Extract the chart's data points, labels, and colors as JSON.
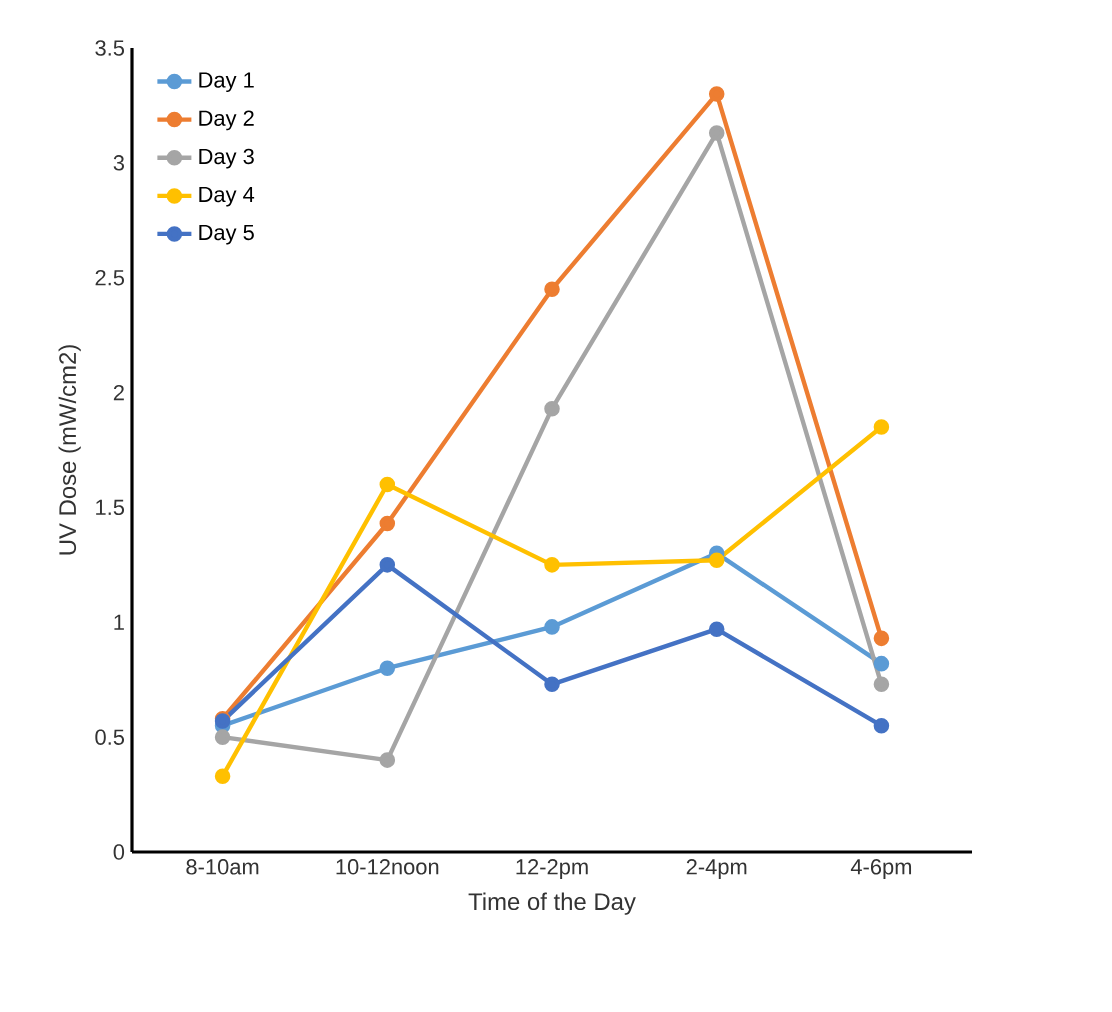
{
  "chart_data": {
    "type": "line",
    "xlabel": "Time of the Day",
    "ylabel": "UV Dose (mW/cm2)",
    "categories": [
      "8-10am",
      "10-12noon",
      "12-2pm",
      "2-4pm",
      "4-6pm"
    ],
    "ylim": [
      0,
      3.5
    ],
    "yticks": [
      0,
      0.5,
      1,
      1.5,
      2,
      2.5,
      3,
      3.5
    ],
    "grid": false,
    "legend": "top left",
    "marker": "circle",
    "line_style": "solid",
    "series": [
      {
        "name": "Day 1",
        "color": "#5b9bd5",
        "values": [
          0.55,
          0.8,
          0.98,
          1.3,
          0.82
        ]
      },
      {
        "name": "Day 2",
        "color": "#ed7d31",
        "values": [
          0.58,
          1.43,
          2.45,
          3.3,
          0.93
        ]
      },
      {
        "name": "Day 3",
        "color": "#a5a5a5",
        "values": [
          0.5,
          0.4,
          1.93,
          3.13,
          0.73
        ]
      },
      {
        "name": "Day 4",
        "color": "#ffc000",
        "values": [
          0.33,
          1.6,
          1.25,
          1.27,
          1.85
        ]
      },
      {
        "name": "Day 5",
        "color": "#4472c4",
        "values": [
          0.57,
          1.25,
          0.73,
          0.97,
          0.55
        ]
      }
    ]
  }
}
